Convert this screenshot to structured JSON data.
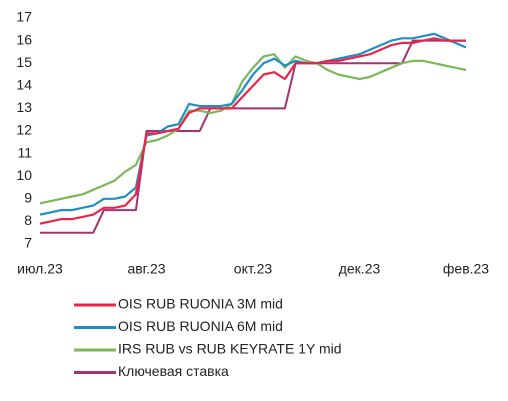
{
  "chart_data": {
    "type": "line",
    "categories": [
      "июл.23",
      null,
      null,
      null,
      null,
      null,
      null,
      null,
      null,
      null,
      "авг.23",
      null,
      null,
      null,
      null,
      null,
      null,
      null,
      null,
      null,
      "окт.23",
      null,
      null,
      null,
      null,
      null,
      null,
      null,
      null,
      null,
      "дек.23",
      null,
      null,
      null,
      null,
      null,
      null,
      null,
      null,
      null,
      "фев.23"
    ],
    "ylim": [
      7,
      17
    ],
    "yticks": [
      7,
      8,
      9,
      10,
      11,
      12,
      13,
      14,
      15,
      16,
      17
    ],
    "grid": false,
    "series": [
      {
        "name": "OIS RUB RUONIA 3M mid",
        "color": "#e8254a",
        "values": [
          7.9,
          8.0,
          8.1,
          8.1,
          8.2,
          8.3,
          8.6,
          8.6,
          8.7,
          9.2,
          11.9,
          11.9,
          12.0,
          12.1,
          12.8,
          13.0,
          13.0,
          13.0,
          13.0,
          13.5,
          14.0,
          14.5,
          14.6,
          14.3,
          15.0,
          15.0,
          15.0,
          15.1,
          15.1,
          15.2,
          15.3,
          15.4,
          15.6,
          15.8,
          15.9,
          15.9,
          16.0,
          16.1,
          16.0,
          16.0,
          16.0
        ]
      },
      {
        "name": "OIS RUB RUONIA 6M mid",
        "color": "#1e8fc4",
        "values": [
          8.3,
          8.4,
          8.5,
          8.5,
          8.6,
          8.7,
          9.0,
          9.0,
          9.1,
          9.5,
          11.8,
          11.9,
          12.2,
          12.3,
          13.2,
          13.1,
          13.1,
          13.1,
          13.2,
          13.8,
          14.5,
          15.0,
          15.2,
          14.9,
          15.1,
          15.0,
          15.0,
          15.1,
          15.2,
          15.3,
          15.4,
          15.6,
          15.8,
          16.0,
          16.1,
          16.1,
          16.2,
          16.3,
          16.1,
          15.9,
          15.7
        ]
      },
      {
        "name": "IRS RUB vs RUB KEYRATE 1Y mid",
        "color": "#7ab85a",
        "values": [
          8.8,
          8.9,
          9.0,
          9.1,
          9.2,
          9.4,
          9.6,
          9.8,
          10.2,
          10.5,
          11.5,
          11.6,
          11.8,
          12.1,
          12.9,
          12.9,
          12.8,
          12.9,
          13.2,
          14.2,
          14.8,
          15.3,
          15.4,
          14.8,
          15.3,
          15.1,
          15.0,
          14.7,
          14.5,
          14.4,
          14.3,
          14.4,
          14.6,
          14.8,
          15.0,
          15.1,
          15.1,
          15.0,
          14.9,
          14.8,
          14.7
        ]
      },
      {
        "name": "Ключевая ставка",
        "color": "#a2336e",
        "values": [
          7.5,
          7.5,
          7.5,
          7.5,
          7.5,
          7.5,
          8.5,
          8.5,
          8.5,
          8.5,
          12,
          12,
          12,
          12,
          12,
          12,
          13,
          13,
          13,
          13,
          13,
          13,
          13,
          13,
          15,
          15,
          15,
          15,
          15,
          15,
          15,
          15,
          15,
          15,
          15,
          16,
          16,
          16,
          16,
          16,
          16
        ]
      }
    ]
  }
}
